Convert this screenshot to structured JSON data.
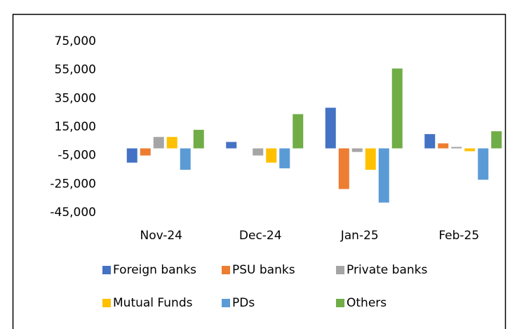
{
  "chart_data": {
    "type": "bar",
    "categories": [
      "Nov-24",
      "Dec-24",
      "Jan-25",
      "Feb-25"
    ],
    "series": [
      {
        "name": "Foreign banks",
        "color": "#4472c4",
        "values": [
          -10000,
          4500,
          28500,
          10000
        ]
      },
      {
        "name": "PSU banks",
        "color": "#ed7d31",
        "values": [
          -5000,
          0,
          -28500,
          3500
        ]
      },
      {
        "name": "Private banks",
        "color": "#a5a5a5",
        "values": [
          8000,
          -5000,
          -2500,
          1000
        ]
      },
      {
        "name": "Mutual Funds",
        "color": "#ffc000",
        "values": [
          8000,
          -10000,
          -15000,
          -2000
        ]
      },
      {
        "name": "PDs",
        "color": "#5b9bd5",
        "values": [
          -15000,
          -14000,
          -38000,
          -22000
        ]
      },
      {
        "name": "Others",
        "color": "#70ad47",
        "values": [
          13000,
          24000,
          56000,
          12000
        ]
      }
    ],
    "ylim": [
      -45000,
      75000
    ],
    "yticks": [
      {
        "value": -45000,
        "label": "-45,000"
      },
      {
        "value": -25000,
        "label": "-25,000"
      },
      {
        "value": -5000,
        "label": "-5,000"
      },
      {
        "value": 15000,
        "label": "15,000"
      },
      {
        "value": 35000,
        "label": "35,000"
      },
      {
        "value": 55000,
        "label": "55,000"
      },
      {
        "value": 75000,
        "label": "75,000"
      }
    ],
    "grid": false,
    "legend": "bottom"
  }
}
